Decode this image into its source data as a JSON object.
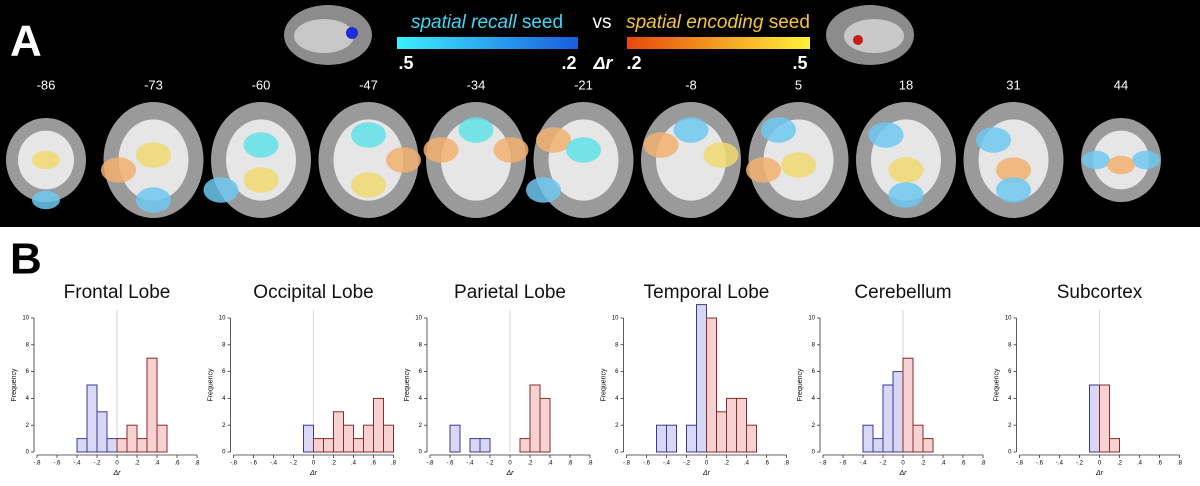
{
  "panel_a": {
    "label": "A",
    "seed_left": {
      "italic": "spatial recall",
      "rest": " seed"
    },
    "vs": "vs",
    "seed_right": {
      "italic": "spatial encoding",
      "rest": " seed"
    },
    "scale_labels": [
      ".5",
      ".2",
      "Δr",
      ".2",
      ".5"
    ],
    "slices": [
      "-86",
      "-73",
      "-60",
      "-47",
      "-34",
      "-21",
      "-8",
      "5",
      "18",
      "31",
      "44"
    ]
  },
  "panel_b": {
    "label": "B"
  },
  "chart_data": [
    {
      "type": "histogram",
      "title": "Frontal Lobe",
      "xlabel": "Δr",
      "ylabel": "Frequency",
      "bins": [
        -0.8,
        -0.7,
        -0.6,
        -0.5,
        -0.4,
        -0.3,
        -0.2,
        -0.1,
        0,
        0.1,
        0.2,
        0.3,
        0.4,
        0.5,
        0.6,
        0.7,
        0.8
      ],
      "values": [
        0,
        0,
        0,
        0,
        1,
        5,
        3,
        1,
        1,
        2,
        1,
        7,
        2,
        0,
        0,
        0
      ],
      "color_negative": "#d8d8f4",
      "color_positive": "#f7d2d2",
      "xlim": [
        -0.8,
        0.8
      ],
      "ylim": [
        0,
        10
      ],
      "xticks": [
        {
          "value": -0.8,
          "label": "-.8"
        },
        {
          "value": -0.6,
          "label": "-.6"
        },
        {
          "value": -0.4,
          "label": "-.4"
        },
        {
          "value": -0.2,
          "label": "-.2"
        },
        0,
        {
          "value": 0.2,
          "label": ".2"
        },
        {
          "value": 0.4,
          "label": ".4"
        },
        {
          "value": 0.6,
          "label": ".6"
        },
        {
          "value": 0.8,
          "label": ".8"
        }
      ],
      "yticks": [
        0,
        2,
        4,
        6,
        8,
        10
      ]
    },
    {
      "type": "histogram",
      "title": "Occipital Lobe",
      "xlabel": "Δr",
      "ylabel": "Frequency",
      "bins": [
        -0.8,
        -0.7,
        -0.6,
        -0.5,
        -0.4,
        -0.3,
        -0.2,
        -0.1,
        0,
        0.1,
        0.2,
        0.3,
        0.4,
        0.5,
        0.6,
        0.7,
        0.8
      ],
      "values": [
        0,
        0,
        0,
        0,
        0,
        0,
        0,
        2,
        1,
        1,
        3,
        2,
        1,
        2,
        4,
        2
      ],
      "color_negative": "#d8d8f4",
      "color_positive": "#f7d2d2",
      "xlim": [
        -0.8,
        0.8
      ],
      "ylim": [
        0,
        10
      ],
      "xticks": [
        {
          "value": -0.8,
          "label": "-.8"
        },
        {
          "value": -0.6,
          "label": "-.6"
        },
        {
          "value": -0.4,
          "label": "-.4"
        },
        {
          "value": -0.2,
          "label": "-.2"
        },
        0,
        {
          "value": 0.2,
          "label": ".2"
        },
        {
          "value": 0.4,
          "label": ".4"
        },
        {
          "value": 0.6,
          "label": ".6"
        },
        {
          "value": 0.8,
          "label": ".8"
        }
      ],
      "yticks": [
        0,
        2,
        4,
        6,
        8,
        10
      ]
    },
    {
      "type": "histogram",
      "title": "Parietal Lobe",
      "xlabel": "Δr",
      "ylabel": "Frequency",
      "bins": [
        -0.8,
        -0.7,
        -0.6,
        -0.5,
        -0.4,
        -0.3,
        -0.2,
        -0.1,
        0,
        0.1,
        0.2,
        0.3,
        0.4,
        0.5,
        0.6,
        0.7,
        0.8
      ],
      "values": [
        0,
        0,
        2,
        0,
        1,
        1,
        0,
        0,
        0,
        1,
        5,
        4,
        0,
        0,
        0,
        0
      ],
      "color_negative": "#d8d8f4",
      "color_positive": "#f7d2d2",
      "xlim": [
        -0.8,
        0.8
      ],
      "ylim": [
        0,
        10
      ],
      "xticks": [
        {
          "value": -0.8,
          "label": "-.8"
        },
        {
          "value": -0.6,
          "label": "-.6"
        },
        {
          "value": -0.4,
          "label": "-.4"
        },
        {
          "value": -0.2,
          "label": "-.2"
        },
        0,
        {
          "value": 0.2,
          "label": ".2"
        },
        {
          "value": 0.4,
          "label": ".4"
        },
        {
          "value": 0.6,
          "label": ".6"
        },
        {
          "value": 0.8,
          "label": ".8"
        }
      ],
      "yticks": [
        0,
        2,
        4,
        6,
        8,
        10
      ]
    },
    {
      "type": "histogram",
      "title": "Temporal Lobe",
      "xlabel": "Δr",
      "ylabel": "Frequency",
      "bins": [
        -0.8,
        -0.7,
        -0.6,
        -0.5,
        -0.4,
        -0.3,
        -0.2,
        -0.1,
        0,
        0.1,
        0.2,
        0.3,
        0.4,
        0.5,
        0.6,
        0.7,
        0.8
      ],
      "values": [
        0,
        0,
        0,
        2,
        2,
        0,
        2,
        11,
        10,
        3,
        4,
        4,
        2,
        0,
        0,
        0
      ],
      "color_negative": "#d8d8f4",
      "color_positive": "#f7d2d2",
      "xlim": [
        -0.8,
        0.8
      ],
      "ylim": [
        0,
        10
      ],
      "xticks": [
        {
          "value": -0.8,
          "label": "-.8"
        },
        {
          "value": -0.6,
          "label": "-.6"
        },
        {
          "value": -0.4,
          "label": "-.4"
        },
        {
          "value": -0.2,
          "label": "-.2"
        },
        0,
        {
          "value": 0.2,
          "label": ".2"
        },
        {
          "value": 0.4,
          "label": ".4"
        },
        {
          "value": 0.6,
          "label": ".6"
        },
        {
          "value": 0.8,
          "label": ".8"
        }
      ],
      "yticks": [
        0,
        2,
        4,
        6,
        8,
        10
      ]
    },
    {
      "type": "histogram",
      "title": "Cerebellum",
      "xlabel": "Δr",
      "ylabel": "Frequency",
      "bins": [
        -0.8,
        -0.7,
        -0.6,
        -0.5,
        -0.4,
        -0.3,
        -0.2,
        -0.1,
        0,
        0.1,
        0.2,
        0.3,
        0.4,
        0.5,
        0.6,
        0.7,
        0.8
      ],
      "values": [
        0,
        0,
        0,
        0,
        2,
        1,
        5,
        6,
        7,
        2,
        1,
        0,
        0,
        0,
        0,
        0
      ],
      "color_negative": "#d8d8f4",
      "color_positive": "#f7d2d2",
      "xlim": [
        -0.8,
        0.8
      ],
      "ylim": [
        0,
        10
      ],
      "xticks": [
        {
          "value": -0.8,
          "label": "-.8"
        },
        {
          "value": -0.6,
          "label": "-.6"
        },
        {
          "value": -0.4,
          "label": "-.4"
        },
        {
          "value": -0.2,
          "label": "-.2"
        },
        0,
        {
          "value": 0.2,
          "label": ".2"
        },
        {
          "value": 0.4,
          "label": ".4"
        },
        {
          "value": 0.6,
          "label": ".6"
        },
        {
          "value": 0.8,
          "label": ".8"
        }
      ],
      "yticks": [
        0,
        2,
        4,
        6,
        8,
        10
      ]
    },
    {
      "type": "histogram",
      "title": "Subcortex",
      "xlabel": "Δr",
      "ylabel": "Frequency",
      "bins": [
        -0.8,
        -0.7,
        -0.6,
        -0.5,
        -0.4,
        -0.3,
        -0.2,
        -0.1,
        0,
        0.1,
        0.2,
        0.3,
        0.4,
        0.5,
        0.6,
        0.7,
        0.8
      ],
      "values": [
        0,
        0,
        0,
        0,
        0,
        0,
        0,
        5,
        5,
        1,
        0,
        0,
        0,
        0,
        0,
        0
      ],
      "color_negative": "#d8d8f4",
      "color_positive": "#f7d2d2",
      "xlim": [
        -0.8,
        0.8
      ],
      "ylim": [
        0,
        10
      ],
      "xticks": [
        {
          "value": -0.8,
          "label": "-.8"
        },
        {
          "value": -0.6,
          "label": "-.6"
        },
        {
          "value": -0.4,
          "label": "-.4"
        },
        {
          "value": -0.2,
          "label": "-.2"
        },
        0,
        {
          "value": 0.2,
          "label": ".2"
        },
        {
          "value": 0.4,
          "label": ".4"
        },
        {
          "value": 0.6,
          "label": ".6"
        },
        {
          "value": 0.8,
          "label": ".8"
        }
      ],
      "yticks": [
        0,
        2,
        4,
        6,
        8,
        10
      ]
    }
  ]
}
